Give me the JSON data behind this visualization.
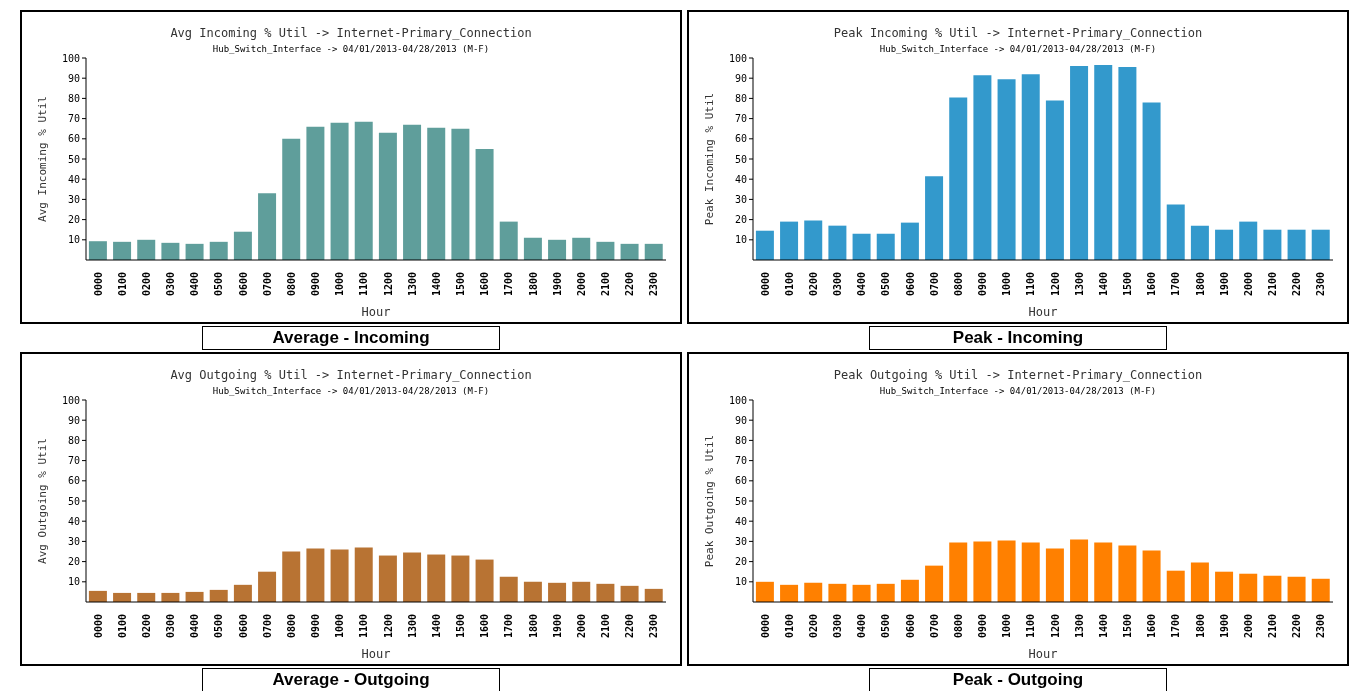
{
  "chart_data": [
    {
      "type": "bar",
      "title": "Avg Incoming % Util -> Internet-Primary_Connection",
      "subtitle": "Hub_Switch_Interface -> 04/01/2013-04/28/2013 (M-F)",
      "xlabel": "Hour",
      "ylabel": "Avg Incoming % Util",
      "categories": [
        "0000",
        "0100",
        "0200",
        "0300",
        "0400",
        "0500",
        "0600",
        "0700",
        "0800",
        "0900",
        "1000",
        "1100",
        "1200",
        "1300",
        "1400",
        "1500",
        "1600",
        "1700",
        "1800",
        "1900",
        "2000",
        "2100",
        "2200",
        "2300"
      ],
      "color": "#5f9e9b",
      "values": [
        9.3,
        9,
        10,
        8.5,
        8,
        9,
        14,
        33,
        60,
        66,
        68,
        68.5,
        63,
        67,
        65.5,
        65,
        55,
        19,
        11,
        10,
        11,
        9,
        8,
        8
      ],
      "ylim": [
        0,
        100
      ],
      "yticks": [
        10,
        20,
        30,
        40,
        50,
        60,
        70,
        80,
        90,
        100
      ],
      "annotations": [
        "Average - Incoming"
      ]
    },
    {
      "type": "bar",
      "title": "Peak Incoming % Util -> Internet-Primary_Connection",
      "subtitle": "Hub_Switch_Interface -> 04/01/2013-04/28/2013 (M-F)",
      "xlabel": "Hour",
      "ylabel": "Peak Incoming % Util",
      "categories": [
        "0000",
        "0100",
        "0200",
        "0300",
        "0400",
        "0500",
        "0600",
        "0700",
        "0800",
        "0900",
        "1000",
        "1100",
        "1200",
        "1300",
        "1400",
        "1500",
        "1600",
        "1700",
        "1800",
        "1900",
        "2000",
        "2100",
        "2200",
        "2300"
      ],
      "color": "#3399cc",
      "values": [
        14.5,
        19,
        19.5,
        17,
        13,
        13,
        18.5,
        41.5,
        80.5,
        91.5,
        89.5,
        92,
        79,
        96,
        96.5,
        95.5,
        78,
        27.5,
        17,
        15,
        19,
        15,
        15,
        15
      ],
      "ylim": [
        0,
        100
      ],
      "yticks": [
        10,
        20,
        30,
        40,
        50,
        60,
        70,
        80,
        90,
        100
      ],
      "annotations": [
        "Peak - Incoming"
      ]
    },
    {
      "type": "bar",
      "title": "Avg Outgoing % Util -> Internet-Primary_Connection",
      "subtitle": "Hub_Switch_Interface -> 04/01/2013-04/28/2013 (M-F)",
      "xlabel": "Hour",
      "ylabel": "Avg Outgoing % Util",
      "categories": [
        "0000",
        "0100",
        "0200",
        "0300",
        "0400",
        "0500",
        "0600",
        "0700",
        "0800",
        "0900",
        "1000",
        "1100",
        "1200",
        "1300",
        "1400",
        "1500",
        "1600",
        "1700",
        "1800",
        "1900",
        "2000",
        "2100",
        "2200",
        "2300"
      ],
      "color": "#b87333",
      "values": [
        5.5,
        4.5,
        4.5,
        4.5,
        5,
        6,
        8.5,
        15,
        25,
        26.5,
        26,
        27,
        23,
        24.5,
        23.5,
        23,
        21,
        12.5,
        10,
        9.5,
        10,
        9,
        8,
        6.5
      ],
      "ylim": [
        0,
        100
      ],
      "yticks": [
        10,
        20,
        30,
        40,
        50,
        60,
        70,
        80,
        90,
        100
      ],
      "annotations": [
        "Average - Outgoing"
      ]
    },
    {
      "type": "bar",
      "title": "Peak Outgoing % Util -> Internet-Primary_Connection",
      "subtitle": "Hub_Switch_Interface -> 04/01/2013-04/28/2013 (M-F)",
      "xlabel": "Hour",
      "ylabel": "Peak Outgoing % Util",
      "categories": [
        "0000",
        "0100",
        "0200",
        "0300",
        "0400",
        "0500",
        "0600",
        "0700",
        "0800",
        "0900",
        "1000",
        "1100",
        "1200",
        "1300",
        "1400",
        "1500",
        "1600",
        "1700",
        "1800",
        "1900",
        "2000",
        "2100",
        "2200",
        "2300"
      ],
      "color": "#ff8000",
      "values": [
        10,
        8.5,
        9.5,
        9,
        8.5,
        9,
        11,
        18,
        29.5,
        30,
        30.5,
        29.5,
        26.5,
        31,
        29.5,
        28,
        25.5,
        15.5,
        19.5,
        15,
        14,
        13,
        12.5,
        11.5
      ],
      "ylim": [
        0,
        100
      ],
      "yticks": [
        10,
        20,
        30,
        40,
        50,
        60,
        70,
        80,
        90,
        100
      ],
      "annotations": [
        "Peak - Outgoing"
      ]
    }
  ]
}
